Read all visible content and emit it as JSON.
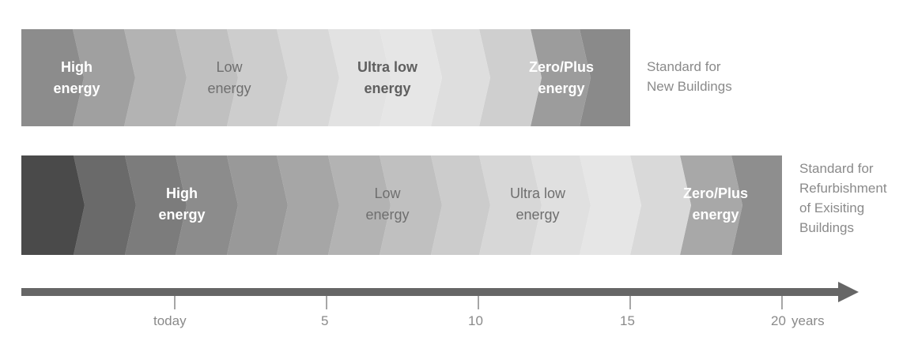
{
  "rows": [
    {
      "name": "new-buildings",
      "side_label": [
        "Standard for",
        "New Buildings"
      ],
      "stages": [
        {
          "name": "high-energy",
          "lines": [
            "High",
            "energy"
          ],
          "style": "bold"
        },
        {
          "name": "low-energy",
          "lines": [
            "Low",
            "energy"
          ],
          "style": "light"
        },
        {
          "name": "ultra-low-energy",
          "lines": [
            "Ultra low",
            "energy"
          ],
          "style": "light-bold"
        },
        {
          "name": "zero-plus-energy",
          "lines": [
            "Zero/Plus",
            "energy"
          ],
          "style": "bold"
        }
      ]
    },
    {
      "name": "refurbishment",
      "side_label": [
        "Standard for",
        "Refurbishment",
        "of Exisiting",
        "Buildings"
      ],
      "stages": [
        {
          "name": "high-energy",
          "lines": [
            "High",
            "energy"
          ],
          "style": "bold"
        },
        {
          "name": "low-energy",
          "lines": [
            "Low",
            "energy"
          ],
          "style": "light"
        },
        {
          "name": "ultra-low-energy",
          "lines": [
            "Ultra low",
            "energy"
          ],
          "style": "light"
        },
        {
          "name": "zero-plus-energy",
          "lines": [
            "Zero/Plus",
            "energy"
          ],
          "style": "bold"
        }
      ]
    }
  ],
  "timeline": {
    "ticks": [
      {
        "label": "today",
        "value": 0
      },
      {
        "label": "5",
        "value": 5
      },
      {
        "label": "10",
        "value": 10
      },
      {
        "label": "15",
        "value": 15
      },
      {
        "label": "20",
        "value": 20
      }
    ],
    "unit": "years"
  },
  "colors": {
    "text_light": "#6f6f6f",
    "text_bold": "#ffffff",
    "side_text": "#8a8a8a",
    "axis": "#666666"
  }
}
